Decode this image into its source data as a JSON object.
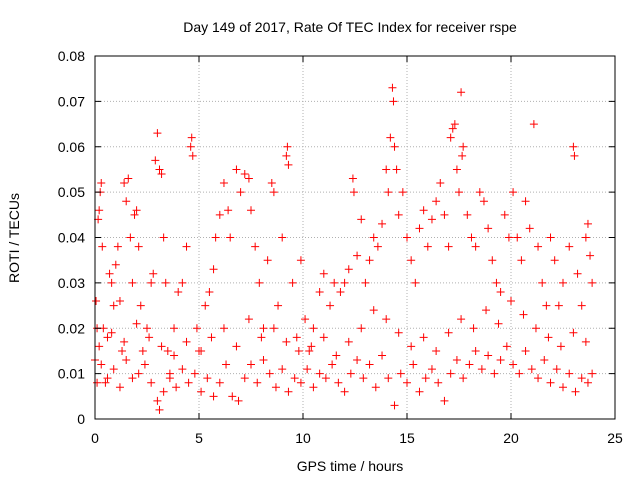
{
  "chart_data": {
    "type": "scatter",
    "title": "Day 149 of 2017, Rate Of TEC Index for receiver rspe",
    "xlabel": "GPS time / hours",
    "ylabel": "ROTI / TECUs",
    "xlim": [
      0,
      25
    ],
    "ylim": [
      0,
      0.08
    ],
    "x_ticks": [
      0,
      5,
      10,
      15,
      20,
      25
    ],
    "y_ticks": [
      0,
      0.01,
      0.02,
      0.03,
      0.04,
      0.05,
      0.06,
      0.07,
      0.08
    ],
    "x_tick_labels": [
      "0",
      "5",
      "10",
      "15",
      "20",
      "25"
    ],
    "y_tick_labels": [
      "0",
      "0.01",
      "0.02",
      "0.03",
      "0.04",
      "0.05",
      "0.06",
      "0.07",
      "0.08"
    ],
    "grid": true,
    "legend": "none",
    "marker": "plus",
    "marker_color": "#ff0000",
    "series": [
      {
        "points": [
          [
            0.0,
            0.013
          ],
          [
            0.05,
            0.026
          ],
          [
            0.1,
            0.02
          ],
          [
            0.15,
            0.044
          ],
          [
            0.2,
            0.046
          ],
          [
            0.25,
            0.05
          ],
          [
            0.3,
            0.052
          ],
          [
            0.35,
            0.038
          ],
          [
            0.4,
            0.02
          ],
          [
            0.5,
            0.008
          ],
          [
            0.6,
            0.018
          ],
          [
            0.7,
            0.032
          ],
          [
            0.8,
            0.03
          ],
          [
            0.9,
            0.025
          ],
          [
            1.0,
            0.034
          ],
          [
            1.1,
            0.038
          ],
          [
            1.2,
            0.026
          ],
          [
            1.3,
            0.015
          ],
          [
            1.4,
            0.052
          ],
          [
            1.5,
            0.048
          ],
          [
            1.6,
            0.053
          ],
          [
            1.7,
            0.04
          ],
          [
            1.8,
            0.03
          ],
          [
            1.9,
            0.045
          ],
          [
            2.0,
            0.046
          ],
          [
            2.1,
            0.038
          ],
          [
            2.2,
            0.025
          ],
          [
            2.3,
            0.015
          ],
          [
            2.5,
            0.02
          ],
          [
            2.7,
            0.03
          ],
          [
            2.8,
            0.032
          ],
          [
            2.9,
            0.057
          ],
          [
            3.0,
            0.063
          ],
          [
            3.1,
            0.055
          ],
          [
            3.2,
            0.054
          ],
          [
            3.3,
            0.04
          ],
          [
            3.4,
            0.03
          ],
          [
            3.5,
            0.015
          ],
          [
            3.6,
            0.01
          ],
          [
            3.8,
            0.02
          ],
          [
            4.0,
            0.028
          ],
          [
            4.2,
            0.03
          ],
          [
            4.4,
            0.038
          ],
          [
            4.6,
            0.06
          ],
          [
            4.65,
            0.062
          ],
          [
            4.7,
            0.058
          ],
          [
            4.9,
            0.02
          ],
          [
            5.1,
            0.015
          ],
          [
            5.3,
            0.025
          ],
          [
            5.5,
            0.028
          ],
          [
            5.7,
            0.033
          ],
          [
            5.8,
            0.04
          ],
          [
            6.0,
            0.045
          ],
          [
            6.2,
            0.052
          ],
          [
            6.4,
            0.046
          ],
          [
            6.5,
            0.04
          ],
          [
            6.8,
            0.055
          ],
          [
            7.0,
            0.05
          ],
          [
            7.2,
            0.054
          ],
          [
            7.4,
            0.053
          ],
          [
            7.5,
            0.046
          ],
          [
            7.7,
            0.038
          ],
          [
            7.9,
            0.03
          ],
          [
            8.1,
            0.02
          ],
          [
            8.3,
            0.035
          ],
          [
            8.5,
            0.052
          ],
          [
            8.6,
            0.05
          ],
          [
            8.8,
            0.025
          ],
          [
            9.0,
            0.04
          ],
          [
            9.2,
            0.058
          ],
          [
            9.25,
            0.06
          ],
          [
            9.3,
            0.056
          ],
          [
            9.5,
            0.03
          ],
          [
            9.7,
            0.018
          ],
          [
            9.9,
            0.035
          ],
          [
            10.1,
            0.022
          ],
          [
            10.3,
            0.015
          ],
          [
            10.5,
            0.02
          ],
          [
            10.8,
            0.028
          ],
          [
            11.0,
            0.032
          ],
          [
            11.3,
            0.025
          ],
          [
            11.5,
            0.03
          ],
          [
            11.8,
            0.028
          ],
          [
            12.0,
            0.03
          ],
          [
            12.2,
            0.033
          ],
          [
            12.4,
            0.053
          ],
          [
            12.45,
            0.05
          ],
          [
            12.6,
            0.036
          ],
          [
            12.8,
            0.044
          ],
          [
            13.0,
            0.03
          ],
          [
            13.2,
            0.035
          ],
          [
            13.4,
            0.04
          ],
          [
            13.6,
            0.038
          ],
          [
            13.8,
            0.043
          ],
          [
            14.0,
            0.055
          ],
          [
            14.1,
            0.05
          ],
          [
            14.2,
            0.062
          ],
          [
            14.3,
            0.073
          ],
          [
            14.35,
            0.07
          ],
          [
            14.4,
            0.06
          ],
          [
            14.5,
            0.055
          ],
          [
            14.6,
            0.045
          ],
          [
            14.8,
            0.05
          ],
          [
            15.0,
            0.04
          ],
          [
            15.2,
            0.035
          ],
          [
            15.4,
            0.03
          ],
          [
            15.6,
            0.042
          ],
          [
            15.8,
            0.046
          ],
          [
            16.0,
            0.038
          ],
          [
            16.2,
            0.044
          ],
          [
            16.4,
            0.048
          ],
          [
            16.6,
            0.052
          ],
          [
            16.8,
            0.045
          ],
          [
            17.0,
            0.038
          ],
          [
            17.1,
            0.062
          ],
          [
            17.2,
            0.064
          ],
          [
            17.3,
            0.065
          ],
          [
            17.4,
            0.055
          ],
          [
            17.5,
            0.05
          ],
          [
            17.6,
            0.072
          ],
          [
            17.65,
            0.058
          ],
          [
            17.7,
            0.06
          ],
          [
            17.9,
            0.045
          ],
          [
            18.1,
            0.04
          ],
          [
            18.3,
            0.038
          ],
          [
            18.5,
            0.05
          ],
          [
            18.7,
            0.048
          ],
          [
            18.9,
            0.042
          ],
          [
            19.1,
            0.035
          ],
          [
            19.3,
            0.03
          ],
          [
            19.5,
            0.028
          ],
          [
            19.7,
            0.045
          ],
          [
            19.9,
            0.04
          ],
          [
            20.1,
            0.05
          ],
          [
            20.3,
            0.04
          ],
          [
            20.5,
            0.035
          ],
          [
            20.7,
            0.048
          ],
          [
            20.9,
            0.042
          ],
          [
            21.1,
            0.065
          ],
          [
            21.3,
            0.038
          ],
          [
            21.5,
            0.03
          ],
          [
            21.7,
            0.025
          ],
          [
            21.9,
            0.04
          ],
          [
            22.1,
            0.035
          ],
          [
            22.3,
            0.025
          ],
          [
            22.5,
            0.03
          ],
          [
            22.8,
            0.038
          ],
          [
            23.0,
            0.06
          ],
          [
            23.05,
            0.058
          ],
          [
            23.2,
            0.032
          ],
          [
            23.4,
            0.025
          ],
          [
            23.6,
            0.04
          ],
          [
            23.7,
            0.043
          ],
          [
            23.8,
            0.036
          ],
          [
            23.9,
            0.03
          ],
          [
            0.1,
            0.008
          ],
          [
            0.3,
            0.012
          ],
          [
            0.6,
            0.009
          ],
          [
            0.9,
            0.011
          ],
          [
            1.2,
            0.007
          ],
          [
            1.5,
            0.013
          ],
          [
            1.8,
            0.009
          ],
          [
            2.1,
            0.01
          ],
          [
            2.4,
            0.012
          ],
          [
            2.7,
            0.008
          ],
          [
            3.0,
            0.004
          ],
          [
            3.1,
            0.002
          ],
          [
            3.3,
            0.006
          ],
          [
            3.6,
            0.009
          ],
          [
            3.9,
            0.007
          ],
          [
            4.2,
            0.011
          ],
          [
            4.5,
            0.008
          ],
          [
            4.8,
            0.01
          ],
          [
            5.1,
            0.006
          ],
          [
            5.4,
            0.009
          ],
          [
            5.7,
            0.005
          ],
          [
            6.0,
            0.008
          ],
          [
            6.3,
            0.012
          ],
          [
            6.6,
            0.005
          ],
          [
            6.9,
            0.004
          ],
          [
            7.2,
            0.009
          ],
          [
            7.5,
            0.012
          ],
          [
            7.8,
            0.008
          ],
          [
            8.1,
            0.013
          ],
          [
            8.4,
            0.01
          ],
          [
            8.7,
            0.007
          ],
          [
            9.0,
            0.011
          ],
          [
            9.3,
            0.006
          ],
          [
            9.6,
            0.009
          ],
          [
            9.9,
            0.008
          ],
          [
            10.2,
            0.011
          ],
          [
            10.5,
            0.007
          ],
          [
            10.8,
            0.01
          ],
          [
            11.1,
            0.009
          ],
          [
            11.4,
            0.012
          ],
          [
            11.7,
            0.008
          ],
          [
            12.0,
            0.006
          ],
          [
            12.3,
            0.01
          ],
          [
            12.6,
            0.013
          ],
          [
            12.9,
            0.009
          ],
          [
            13.2,
            0.012
          ],
          [
            13.5,
            0.007
          ],
          [
            13.8,
            0.014
          ],
          [
            14.1,
            0.009
          ],
          [
            14.4,
            0.003
          ],
          [
            14.7,
            0.01
          ],
          [
            15.0,
            0.008
          ],
          [
            15.3,
            0.012
          ],
          [
            15.6,
            0.006
          ],
          [
            15.9,
            0.009
          ],
          [
            16.2,
            0.011
          ],
          [
            16.5,
            0.008
          ],
          [
            16.8,
            0.004
          ],
          [
            17.1,
            0.01
          ],
          [
            17.4,
            0.013
          ],
          [
            17.7,
            0.009
          ],
          [
            18.0,
            0.012
          ],
          [
            18.3,
            0.015
          ],
          [
            18.6,
            0.011
          ],
          [
            18.9,
            0.014
          ],
          [
            19.2,
            0.01
          ],
          [
            19.5,
            0.013
          ],
          [
            19.8,
            0.016
          ],
          [
            20.1,
            0.012
          ],
          [
            20.4,
            0.01
          ],
          [
            20.7,
            0.015
          ],
          [
            21.0,
            0.011
          ],
          [
            21.3,
            0.009
          ],
          [
            21.6,
            0.013
          ],
          [
            21.9,
            0.008
          ],
          [
            22.2,
            0.011
          ],
          [
            22.5,
            0.007
          ],
          [
            22.8,
            0.01
          ],
          [
            23.1,
            0.006
          ],
          [
            23.4,
            0.009
          ],
          [
            23.7,
            0.008
          ],
          [
            23.9,
            0.01
          ],
          [
            0.2,
            0.016
          ],
          [
            0.8,
            0.019
          ],
          [
            1.4,
            0.017
          ],
          [
            2.0,
            0.021
          ],
          [
            2.6,
            0.018
          ],
          [
            3.2,
            0.016
          ],
          [
            3.8,
            0.014
          ],
          [
            4.4,
            0.017
          ],
          [
            5.0,
            0.015
          ],
          [
            5.6,
            0.018
          ],
          [
            6.2,
            0.02
          ],
          [
            6.8,
            0.016
          ],
          [
            7.4,
            0.022
          ],
          [
            8.0,
            0.018
          ],
          [
            8.6,
            0.02
          ],
          [
            9.2,
            0.017
          ],
          [
            9.8,
            0.015
          ],
          [
            10.4,
            0.016
          ],
          [
            11.0,
            0.018
          ],
          [
            11.6,
            0.014
          ],
          [
            12.2,
            0.017
          ],
          [
            12.8,
            0.02
          ],
          [
            13.4,
            0.024
          ],
          [
            14.0,
            0.022
          ],
          [
            14.6,
            0.019
          ],
          [
            15.2,
            0.016
          ],
          [
            15.8,
            0.018
          ],
          [
            16.4,
            0.015
          ],
          [
            17.0,
            0.019
          ],
          [
            17.6,
            0.022
          ],
          [
            18.2,
            0.02
          ],
          [
            18.8,
            0.024
          ],
          [
            19.4,
            0.021
          ],
          [
            20.0,
            0.026
          ],
          [
            20.6,
            0.023
          ],
          [
            21.2,
            0.02
          ],
          [
            21.8,
            0.018
          ],
          [
            22.4,
            0.016
          ],
          [
            23.0,
            0.019
          ],
          [
            23.6,
            0.017
          ]
        ]
      }
    ]
  }
}
